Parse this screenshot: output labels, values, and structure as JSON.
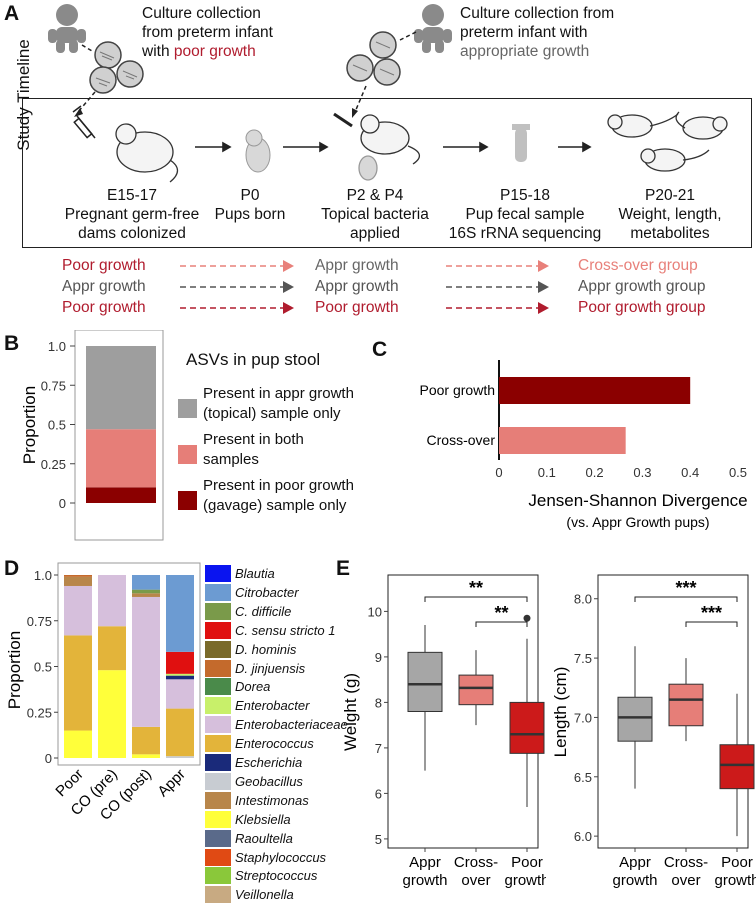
{
  "panel_labels": {
    "a": "A",
    "b": "B",
    "c": "C",
    "d": "D",
    "e": "E"
  },
  "panel_a": {
    "culture_poor_line1": "Culture collection",
    "culture_poor_line2": "from preterm infant",
    "culture_poor_line3_pre": "with ",
    "culture_poor_line3_em": "poor growth",
    "culture_appr_line1": "Culture collection from",
    "culture_appr_line2": "preterm infant with",
    "culture_appr_line3": "appropriate growth",
    "timeline_label": "Study Timeline",
    "steps": [
      {
        "time": "E15-17",
        "line1": "Pregnant germ-free",
        "line2": "dams colonized"
      },
      {
        "time": "P0",
        "line1": "Pups born",
        "line2": ""
      },
      {
        "time": "P2 & P4",
        "line1": "Topical bacteria",
        "line2": "applied"
      },
      {
        "time": "P15-18",
        "line1": "Pup fecal sample",
        "line2": "16S rRNA sequencing"
      },
      {
        "time": "P20-21",
        "line1": "Weight, length,",
        "line2": "metabolites"
      }
    ],
    "groups": [
      {
        "gavage": "Poor growth",
        "topical": "Appr growth",
        "result": "Cross-over group"
      },
      {
        "gavage": "Appr growth",
        "topical": "Appr growth",
        "result": "Appr growth group"
      },
      {
        "gavage": "Poor growth",
        "topical": "Poor growth",
        "result": "Poor growth group"
      }
    ],
    "colors": {
      "poor": "#b01c2e",
      "appr": "#666666",
      "crossover": "#e8807a",
      "dark": "#555555"
    }
  },
  "chart_data": [
    {
      "panel": "B",
      "type": "bar",
      "stacked": true,
      "ylabel": "Proportion",
      "ylim": [
        0,
        1
      ],
      "yticks": [
        "0",
        "0.25",
        "0.5",
        "0.75",
        "1.0"
      ],
      "legend_title": "ASVs in pup stool",
      "series": [
        {
          "name_line1": "Present in poor growth",
          "name_line2": "(gavage) sample only",
          "value": 0.1,
          "color": "#8b0000"
        },
        {
          "name_line1": "Present in both",
          "name_line2": "samples",
          "value": 0.37,
          "color": "#e67e78"
        },
        {
          "name_line1": "Present in appr growth",
          "name_line2": "(topical) sample only",
          "value": 0.53,
          "color": "#9e9e9e"
        }
      ]
    },
    {
      "panel": "C",
      "type": "bar",
      "orientation": "horizontal",
      "categories": [
        "Poor growth",
        "Cross-over"
      ],
      "values": [
        0.4,
        0.265
      ],
      "colors": [
        "#8b0000",
        "#e67e78"
      ],
      "xlim": [
        0,
        0.5
      ],
      "xticks": [
        "0",
        "0.1",
        "0.2",
        "0.3",
        "0.4",
        "0.5"
      ],
      "xlabel": "Jensen-Shannon Divergence",
      "xsublabel": "(vs. Appr Growth pups)"
    },
    {
      "panel": "D",
      "type": "bar",
      "stacked": true,
      "ylabel": "Proportion",
      "ylim": [
        0,
        1
      ],
      "yticks": [
        "0",
        "0.25",
        "0.5",
        "0.75",
        "1.0"
      ],
      "categories": [
        "Poor",
        "CO (pre)",
        "CO (post)",
        "Appr"
      ],
      "taxa": [
        {
          "name": "Blautia",
          "color": "#0a14f0"
        },
        {
          "name": "Citrobacter",
          "color": "#6c9bd2"
        },
        {
          "name": "C. difficile",
          "color": "#7a9a4a"
        },
        {
          "name": "C. sensu stricto 1",
          "color": "#e01010"
        },
        {
          "name": "D. hominis",
          "color": "#7a6a2a"
        },
        {
          "name": "D. jinjuensis",
          "color": "#c46a2c"
        },
        {
          "name": "Dorea",
          "color": "#4a8a4a"
        },
        {
          "name": "Enterobacter",
          "color": "#c8f06a"
        },
        {
          "name": "Enterobacteriaceae",
          "color": "#d6bfdc"
        },
        {
          "name": "Enterococcus",
          "color": "#e3b43a"
        },
        {
          "name": "Escherichia",
          "color": "#1a2a7a"
        },
        {
          "name": "Geobacillus",
          "color": "#c8ccd2"
        },
        {
          "name": "Intestimonas",
          "color": "#b8864a"
        },
        {
          "name": "Klebsiella",
          "color": "#ffff3a"
        },
        {
          "name": "Raoultella",
          "color": "#5a6a8a"
        },
        {
          "name": "Staphylococcus",
          "color": "#e04a14"
        },
        {
          "name": "Streptococcus",
          "color": "#8ac83a"
        },
        {
          "name": "Veillonella",
          "color": "#c8aa82"
        }
      ],
      "stacks": [
        [
          [
            "Klebsiella",
            0.15
          ],
          [
            "Enterococcus",
            0.52
          ],
          [
            "Enterobacteriaceae",
            0.27
          ],
          [
            "Intestimonas",
            0.05
          ],
          [
            "D. jinjuensis",
            0.01
          ]
        ],
        [
          [
            "Klebsiella",
            0.48
          ],
          [
            "Enterococcus",
            0.24
          ],
          [
            "Enterobacteriaceae",
            0.28
          ]
        ],
        [
          [
            "Klebsiella",
            0.02
          ],
          [
            "Enterococcus",
            0.15
          ],
          [
            "Enterobacteriaceae",
            0.71
          ],
          [
            "Intestimonas",
            0.02
          ],
          [
            "C. difficile",
            0.02
          ],
          [
            "Citrobacter",
            0.08
          ]
        ],
        [
          [
            "Geobacillus",
            0.01
          ],
          [
            "Enterococcus",
            0.26
          ],
          [
            "Enterobacteriaceae",
            0.16
          ],
          [
            "Escherichia",
            0.02
          ],
          [
            "Enterobacter",
            0.01
          ],
          [
            "C. sensu stricto 1",
            0.12
          ],
          [
            "Citrobacter",
            0.42
          ]
        ]
      ]
    },
    {
      "panel": "E-weight",
      "type": "box",
      "ylabel": "Weight (g)",
      "ylim": [
        4.8,
        10.8
      ],
      "yticks": [
        5,
        6,
        7,
        8,
        9,
        10
      ],
      "categories": [
        [
          "Appr",
          "growth"
        ],
        [
          "Cross-",
          "over"
        ],
        [
          "Poor",
          "growth"
        ]
      ],
      "colors": [
        "#a6a6a6",
        "#e67e78",
        "#cc1a1a"
      ],
      "boxes": [
        {
          "min": 6.5,
          "q1": 7.8,
          "median": 8.4,
          "q3": 9.1,
          "max": 9.7
        },
        {
          "min": 7.5,
          "q1": 7.95,
          "median": 8.32,
          "q3": 8.6,
          "max": 9.15
        },
        {
          "min": 5.7,
          "q1": 6.88,
          "median": 7.3,
          "q3": 8.0,
          "max": 9.4,
          "outliers": [
            9.85
          ]
        }
      ],
      "significance": [
        {
          "from": 0,
          "to": 2,
          "label": "**"
        },
        {
          "from": 1,
          "to": 2,
          "label": "**"
        }
      ]
    },
    {
      "panel": "E-length",
      "type": "box",
      "ylabel": "Length (cm)",
      "ylim": [
        5.9,
        8.2
      ],
      "yticks": [
        "6.0",
        "6.5",
        "7.0",
        "7.5",
        "8.0"
      ],
      "categories": [
        [
          "Appr",
          "growth"
        ],
        [
          "Cross-",
          "over"
        ],
        [
          "Poor",
          "growth"
        ]
      ],
      "colors": [
        "#a6a6a6",
        "#e67e78",
        "#cc1a1a"
      ],
      "boxes": [
        {
          "min": 6.4,
          "q1": 6.8,
          "median": 7.0,
          "q3": 7.17,
          "max": 7.6
        },
        {
          "min": 6.8,
          "q1": 6.93,
          "median": 7.15,
          "q3": 7.28,
          "max": 7.5
        },
        {
          "min": 6.0,
          "q1": 6.4,
          "median": 6.6,
          "q3": 6.77,
          "max": 7.2
        }
      ],
      "significance": [
        {
          "from": 0,
          "to": 2,
          "label": "***"
        },
        {
          "from": 1,
          "to": 2,
          "label": "***"
        }
      ]
    }
  ]
}
